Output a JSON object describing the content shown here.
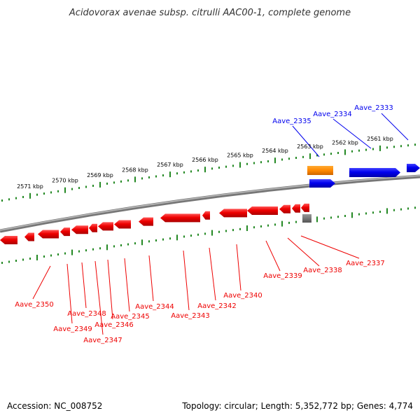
{
  "title": "Acidovorax avenae subsp. citrulli AAC00-1, complete genome",
  "footer": {
    "accession": "Accession: NC_008752",
    "summary": "Topology: circular; Length: 5,352,772 bp; Genes: 4,774"
  },
  "colors": {
    "forward_gene": "#0000ee",
    "reverse_gene": "#ee0000",
    "rna_gene": "#ff8800",
    "other_feature": "#777777",
    "backbone": "#888888",
    "ticks": "#228822"
  },
  "position_ticks": [
    "2561 kbp",
    "2562 kbp",
    "2563 kbp",
    "2564 kbp",
    "2565 kbp",
    "2566 kbp",
    "2567 kbp",
    "2568 kbp",
    "2569 kbp",
    "2570 kbp",
    "2571 kbp"
  ],
  "forward_genes": [
    "Aave_2333",
    "Aave_2334",
    "Aave_2335"
  ],
  "reverse_genes": [
    "Aave_2337",
    "Aave_2338",
    "Aave_2339",
    "Aave_2340",
    "Aave_2342",
    "Aave_2343",
    "Aave_2344",
    "Aave_2345",
    "Aave_2346",
    "Aave_2347",
    "Aave_2348",
    "Aave_2349",
    "Aave_2350"
  ]
}
